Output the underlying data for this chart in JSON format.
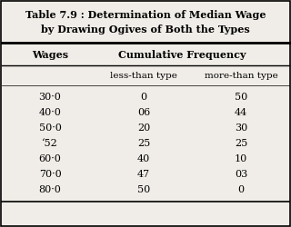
{
  "title_line1": "Table 7.9 : Determination of Median Wage",
  "title_line2": "by Drawing Ogives of Both the Types",
  "col1_header": "Wages",
  "col2_header": "Cumulative Frequency",
  "col2_sub1": "less-than type",
  "col2_sub2": "more-than type",
  "wages": [
    "30·0",
    "40·0",
    "50·0",
    "‘52",
    "60·0",
    "70·0",
    "80·0"
  ],
  "less_than": [
    "0",
    "06",
    "20",
    "25",
    "40",
    "47",
    "50"
  ],
  "more_than": [
    "50",
    "44",
    "30",
    "25",
    "10",
    "03",
    "0"
  ],
  "bg_color": "#f0ede8",
  "title_fontsize": 8.0,
  "header_fontsize": 8.0,
  "sub_fontsize": 7.5,
  "data_fontsize": 8.0
}
